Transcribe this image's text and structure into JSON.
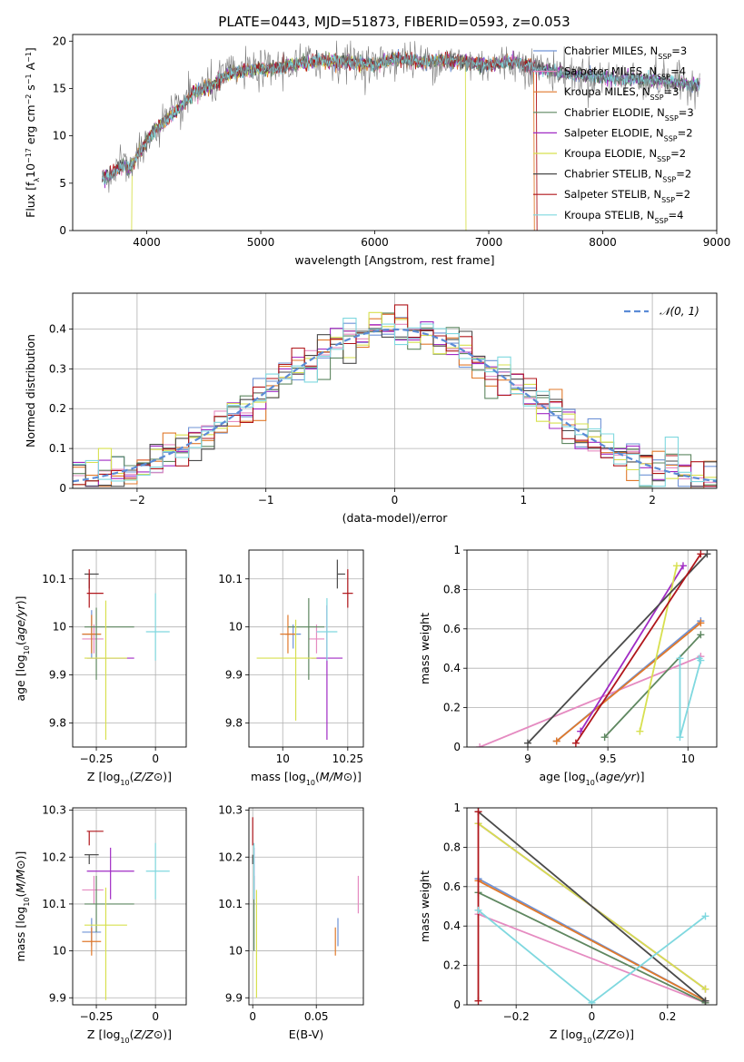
{
  "title": "PLATE=0443, MJD=51873, FIBERID=0593, z=0.053",
  "models": [
    {
      "name": "Chabrier MILES",
      "nssp": "3",
      "color": "#6f93d6"
    },
    {
      "name": "Salpeter MILES",
      "nssp": "4",
      "color": "#e58bc1"
    },
    {
      "name": "Kroupa MILES",
      "nssp": "3",
      "color": "#e0792b"
    },
    {
      "name": "Chabrier ELODIE",
      "nssp": "3",
      "color": "#5e8760"
    },
    {
      "name": "Salpeter ELODIE",
      "nssp": "2",
      "color": "#a02bc4"
    },
    {
      "name": "Kroupa ELODIE",
      "nssp": "2",
      "color": "#d7e04f"
    },
    {
      "name": "Chabrier STELIB",
      "nssp": "2",
      "color": "#4a4a4a"
    },
    {
      "name": "Salpeter STELIB",
      "nssp": "2",
      "color": "#b0161b"
    },
    {
      "name": "Kroupa STELIB",
      "nssp": "4",
      "color": "#7fd8df"
    }
  ],
  "chart_data": [
    {
      "id": "spectrum",
      "type": "line",
      "xlabel": "wavelength [Angstrom, rest frame]",
      "ylabel": "Flux [f_λ 10^-17 erg cm^-2 s^-1 A^-1]",
      "xlim": [
        3350,
        9000
      ],
      "ylim": [
        0,
        20.7
      ],
      "xticks": [
        4000,
        5000,
        6000,
        7000,
        8000,
        9000
      ],
      "yticks": [
        0,
        5,
        10,
        15,
        20
      ],
      "legend": "top-right",
      "data_x": [
        3600,
        3700,
        3800,
        3850,
        3900,
        3950,
        4000,
        4100,
        4200,
        4300,
        4400,
        4500,
        4600,
        4700,
        4800,
        5000,
        5200,
        5400,
        5600,
        5800,
        6000,
        6200,
        6400,
        6600,
        6800,
        7000,
        7200,
        7400,
        7500,
        7700,
        7900,
        8100,
        8300,
        8500,
        8700,
        8850
      ],
      "data_y": [
        5.5,
        6.0,
        7.0,
        6.5,
        7.5,
        8.5,
        9.5,
        11.0,
        12.0,
        13.0,
        14.5,
        15.0,
        15.5,
        16.5,
        16.8,
        17.0,
        17.3,
        17.8,
        18.0,
        17.8,
        17.5,
        18.2,
        17.8,
        18.0,
        17.8,
        17.5,
        17.8,
        17.2,
        17.0,
        16.5,
        16.3,
        16.0,
        16.0,
        15.8,
        15.5,
        15.5
      ],
      "model_cutoffs": [
        {
          "model": "Kroupa ELODIE",
          "from": 3870,
          "to": 6800
        },
        {
          "model": "Kroupa MILES",
          "from": 3600,
          "to": 7400
        },
        {
          "model": "Salpeter STELIB",
          "from": 3600,
          "to": 7420
        }
      ]
    },
    {
      "id": "residual-hist",
      "type": "line",
      "xlabel": "(data-model)/error",
      "ylabel": "Normed distribution",
      "xlim": [
        -2.5,
        2.5
      ],
      "ylim": [
        0,
        0.49
      ],
      "xticks": [
        -2,
        -1,
        0,
        1,
        2
      ],
      "yticks": [
        0,
        0.1,
        0.2,
        0.3,
        0.4
      ],
      "reference_label": "𝒩(0, 1)",
      "reference_color": "#5b8bd6",
      "legend": "top-right"
    },
    {
      "id": "age-vs-z",
      "type": "scatter",
      "xlabel": "Z [log10(Z/Z⊙)]",
      "ylabel": "age  [log10(age/yr)]",
      "xlim": [
        -0.35,
        0.13
      ],
      "ylim": [
        9.75,
        10.16
      ],
      "xticks": [
        -0.25,
        0.0
      ],
      "yticks": [
        9.8,
        9.9,
        10.0,
        10.1
      ],
      "points": [
        {
          "model": "Chabrier MILES",
          "x": -0.27,
          "y": 9.985,
          "xerr": [
            0.04,
            0.04
          ],
          "yerr": [
            0.05,
            0.05
          ]
        },
        {
          "model": "Salpeter MILES",
          "x": -0.26,
          "y": 9.975,
          "xerr": [
            0.05,
            0.04
          ],
          "yerr": [
            0.03,
            0.03
          ]
        },
        {
          "model": "Kroupa MILES",
          "x": -0.27,
          "y": 9.985,
          "xerr": [
            0.04,
            0.04
          ],
          "yerr": [
            0.04,
            0.04
          ]
        },
        {
          "model": "Chabrier ELODIE",
          "x": -0.25,
          "y": 10.0,
          "xerr": [
            0.05,
            0.16
          ],
          "yerr": [
            0.11,
            0.04
          ]
        },
        {
          "model": "Salpeter ELODIE",
          "x": -0.19,
          "y": 9.935,
          "xerr": [
            0.1,
            0.1
          ],
          "yerr": [
            0.0,
            0.0
          ]
        },
        {
          "model": "Kroupa ELODIE",
          "x": -0.21,
          "y": 9.935,
          "xerr": [
            0.09,
            0.09
          ],
          "yerr": [
            0.17,
            0.12
          ]
        },
        {
          "model": "Chabrier STELIB",
          "x": -0.28,
          "y": 10.11,
          "xerr": [
            0.02,
            0.04
          ],
          "yerr": [
            0.03,
            0.0
          ]
        },
        {
          "model": "Salpeter STELIB",
          "x": -0.28,
          "y": 10.07,
          "xerr": [
            0.01,
            0.06
          ],
          "yerr": [
            0.03,
            0.05
          ]
        },
        {
          "model": "Kroupa STELIB",
          "x": 0.0,
          "y": 9.99,
          "xerr": [
            0.04,
            0.06
          ],
          "yerr": [
            0.06,
            0.08
          ]
        }
      ]
    },
    {
      "id": "age-vs-mass",
      "type": "scatter",
      "xlabel": "mass [log10(M/M⊙)]",
      "ylabel": "",
      "xlim": [
        9.87,
        10.31
      ],
      "ylim": [
        9.75,
        10.16
      ],
      "xticks": [
        10.0,
        10.25
      ],
      "yticks": [
        9.8,
        9.9,
        10.0,
        10.1
      ],
      "points": [
        {
          "model": "Chabrier MILES",
          "x": 10.04,
          "y": 9.985,
          "xerr": [
            0.03,
            0.03
          ],
          "yerr": [
            0.03,
            0.02
          ]
        },
        {
          "model": "Salpeter MILES",
          "x": 10.13,
          "y": 9.975,
          "xerr": [
            0.03,
            0.03
          ],
          "yerr": [
            0.03,
            0.03
          ]
        },
        {
          "model": "Kroupa MILES",
          "x": 10.02,
          "y": 9.985,
          "xerr": [
            0.03,
            0.03
          ],
          "yerr": [
            0.04,
            0.04
          ]
        },
        {
          "model": "Chabrier ELODIE",
          "x": 10.1,
          "y": 10.0,
          "xerr": [
            0.08,
            0.06
          ],
          "yerr": [
            0.11,
            0.06
          ]
        },
        {
          "model": "Salpeter ELODIE",
          "x": 10.17,
          "y": 9.935,
          "xerr": [
            0.06,
            0.06
          ],
          "yerr": [
            0.17,
            0.11
          ]
        },
        {
          "model": "Kroupa ELODIE",
          "x": 10.05,
          "y": 9.935,
          "xerr": [
            0.15,
            0.08
          ],
          "yerr": [
            0.13,
            0.08
          ]
        },
        {
          "model": "Chabrier STELIB",
          "x": 10.21,
          "y": 10.11,
          "xerr": [
            0.0,
            0.03
          ],
          "yerr": [
            0.03,
            0.03
          ]
        },
        {
          "model": "Salpeter STELIB",
          "x": 10.25,
          "y": 10.07,
          "xerr": [
            0.02,
            0.02
          ],
          "yerr": [
            0.03,
            0.05
          ]
        },
        {
          "model": "Kroupa STELIB",
          "x": 10.17,
          "y": 9.99,
          "xerr": [
            0.04,
            0.04
          ],
          "yerr": [
            0.06,
            0.07
          ]
        }
      ]
    },
    {
      "id": "mass-weight-vs-age",
      "type": "line",
      "xlabel": "age  [log10(age/yr)]",
      "ylabel": "mass weight",
      "xlim": [
        8.62,
        10.18
      ],
      "ylim": [
        0,
        1.0
      ],
      "xticks": [
        9.0,
        9.5,
        10.0
      ],
      "yticks": [
        0.0,
        0.2,
        0.4,
        0.6,
        0.8,
        1.0
      ],
      "series": [
        {
          "model": "Chabrier MILES",
          "x": [
            9.18,
            10.08
          ],
          "y": [
            0.03,
            0.64
          ]
        },
        {
          "model": "Salpeter MILES",
          "x": [
            8.7,
            10.08
          ],
          "y": [
            0.0,
            0.46
          ]
        },
        {
          "model": "Kroupa MILES",
          "x": [
            9.18,
            10.08
          ],
          "y": [
            0.03,
            0.63
          ]
        },
        {
          "model": "Chabrier ELODIE",
          "x": [
            9.48,
            10.08
          ],
          "y": [
            0.05,
            0.57
          ]
        },
        {
          "model": "Salpeter ELODIE",
          "x": [
            9.33,
            9.97
          ],
          "y": [
            0.08,
            0.92
          ]
        },
        {
          "model": "Kroupa ELODIE",
          "x": [
            9.7,
            9.93
          ],
          "y": [
            0.08,
            0.92
          ]
        },
        {
          "model": "Chabrier STELIB",
          "x": [
            9.0,
            10.12
          ],
          "y": [
            0.02,
            0.98
          ]
        },
        {
          "model": "Salpeter STELIB",
          "x": [
            9.3,
            10.08
          ],
          "y": [
            0.02,
            0.98
          ]
        },
        {
          "model": "Kroupa STELIB",
          "x": [
            9.95,
            9.95,
            10.08,
            10.07
          ],
          "y": [
            0.45,
            0.05,
            0.44,
            0.45
          ]
        }
      ]
    },
    {
      "id": "mass-vs-z",
      "type": "scatter",
      "xlabel": "Z [log10(Z/Z⊙)]",
      "ylabel": "mass [log10(M/M⊙)]",
      "xlim": [
        -0.35,
        0.13
      ],
      "ylim": [
        9.885,
        10.305
      ],
      "xticks": [
        -0.25,
        0.0
      ],
      "yticks": [
        9.9,
        10.0,
        10.1,
        10.2,
        10.3
      ],
      "points": [
        {
          "model": "Chabrier MILES",
          "x": -0.27,
          "y": 10.04,
          "xerr": [
            0.04,
            0.04
          ],
          "yerr": [
            0.03,
            0.03
          ]
        },
        {
          "model": "Salpeter MILES",
          "x": -0.26,
          "y": 10.13,
          "xerr": [
            0.05,
            0.04
          ],
          "yerr": [
            0.03,
            0.03
          ]
        },
        {
          "model": "Kroupa MILES",
          "x": -0.27,
          "y": 10.02,
          "xerr": [
            0.04,
            0.04
          ],
          "yerr": [
            0.03,
            0.03
          ]
        },
        {
          "model": "Chabrier ELODIE",
          "x": -0.25,
          "y": 10.1,
          "xerr": [
            0.05,
            0.16
          ],
          "yerr": [
            0.06,
            0.06
          ]
        },
        {
          "model": "Salpeter ELODIE",
          "x": -0.19,
          "y": 10.17,
          "xerr": [
            0.1,
            0.1
          ],
          "yerr": [
            0.06,
            0.05
          ]
        },
        {
          "model": "Kroupa ELODIE",
          "x": -0.21,
          "y": 10.055,
          "xerr": [
            0.09,
            0.09
          ],
          "yerr": [
            0.16,
            0.08
          ]
        },
        {
          "model": "Chabrier STELIB",
          "x": -0.28,
          "y": 10.205,
          "xerr": [
            0.02,
            0.04
          ],
          "yerr": [
            0.02,
            0.0
          ]
        },
        {
          "model": "Salpeter STELIB",
          "x": -0.28,
          "y": 10.255,
          "xerr": [
            0.01,
            0.06
          ],
          "yerr": [
            0.03,
            0.0
          ]
        },
        {
          "model": "Kroupa STELIB",
          "x": 0.0,
          "y": 10.17,
          "xerr": [
            0.04,
            0.06
          ],
          "yerr": [
            0.06,
            0.06
          ]
        }
      ]
    },
    {
      "id": "mass-vs-ebv",
      "type": "scatter",
      "xlabel": "E(B-V)",
      "ylabel": "",
      "xlim": [
        -0.003,
        0.087
      ],
      "ylim": [
        9.885,
        10.305
      ],
      "xticks": [
        0.0,
        0.05
      ],
      "yticks": [
        9.9,
        10.0,
        10.1,
        10.2,
        10.3
      ],
      "points": [
        {
          "model": "Chabrier MILES",
          "x": 0.067,
          "y": 10.04,
          "xerr": [
            0,
            0
          ],
          "yerr": [
            0.03,
            0.03
          ]
        },
        {
          "model": "Salpeter MILES",
          "x": 0.083,
          "y": 10.13,
          "xerr": [
            0,
            0
          ],
          "yerr": [
            0.05,
            0.03
          ]
        },
        {
          "model": "Kroupa MILES",
          "x": 0.065,
          "y": 10.02,
          "xerr": [
            0,
            0
          ],
          "yerr": [
            0.03,
            0.03
          ]
        },
        {
          "model": "Chabrier ELODIE",
          "x": 0.001,
          "y": 10.1,
          "xerr": [
            0,
            0
          ],
          "yerr": [
            0.1,
            0.06
          ]
        },
        {
          "model": "Salpeter ELODIE",
          "x": 0.001,
          "y": 10.17,
          "xerr": [
            0,
            0
          ],
          "yerr": [
            0.06,
            0.05
          ]
        },
        {
          "model": "Kroupa ELODIE",
          "x": 0.003,
          "y": 10.05,
          "xerr": [
            0,
            0
          ],
          "yerr": [
            0.15,
            0.08
          ]
        },
        {
          "model": "Chabrier STELIB",
          "x": 0.0,
          "y": 10.205,
          "xerr": [
            0,
            0
          ],
          "yerr": [
            0.02,
            0.0
          ]
        },
        {
          "model": "Salpeter STELIB",
          "x": 0.0,
          "y": 10.255,
          "xerr": [
            0,
            0
          ],
          "yerr": [
            0.03,
            0.03
          ]
        },
        {
          "model": "Kroupa STELIB",
          "x": 0.001,
          "y": 10.17,
          "xerr": [
            0,
            0
          ],
          "yerr": [
            0.06,
            0.06
          ]
        }
      ]
    },
    {
      "id": "mass-weight-vs-z",
      "type": "line",
      "xlabel": "Z [log10(Z/Z⊙)]",
      "ylabel": "mass weight",
      "xlim": [
        -0.33,
        0.33
      ],
      "ylim": [
        0,
        1.0
      ],
      "xticks": [
        -0.2,
        0.0,
        0.2
      ],
      "yticks": [
        0.0,
        0.2,
        0.4,
        0.6,
        0.8,
        1.0
      ],
      "series": [
        {
          "model": "Chabrier MILES",
          "x": [
            -0.3,
            0.3
          ],
          "y": [
            0.64,
            0.02
          ]
        },
        {
          "model": "Salpeter MILES",
          "x": [
            -0.3,
            0.3
          ],
          "y": [
            0.46,
            0.01
          ]
        },
        {
          "model": "Kroupa MILES",
          "x": [
            -0.3,
            0.3
          ],
          "y": [
            0.63,
            0.02
          ]
        },
        {
          "model": "Chabrier ELODIE",
          "x": [
            -0.3,
            0.3
          ],
          "y": [
            0.57,
            0.01
          ]
        },
        {
          "model": "Salpeter ELODIE",
          "x": [
            -0.3,
            0.3
          ],
          "y": [
            0.92,
            0.08
          ]
        },
        {
          "model": "Kroupa ELODIE",
          "x": [
            -0.3,
            0.3
          ],
          "y": [
            0.92,
            0.08
          ]
        },
        {
          "model": "Chabrier STELIB",
          "x": [
            -0.3,
            0.3
          ],
          "y": [
            0.98,
            0.02
          ]
        },
        {
          "model": "Salpeter STELIB",
          "x": [
            -0.3,
            -0.3
          ],
          "y": [
            0.98,
            0.02
          ]
        },
        {
          "model": "Kroupa STELIB",
          "x": [
            -0.3,
            0.0,
            0.3
          ],
          "y": [
            0.48,
            0.01,
            0.45
          ]
        }
      ]
    }
  ]
}
